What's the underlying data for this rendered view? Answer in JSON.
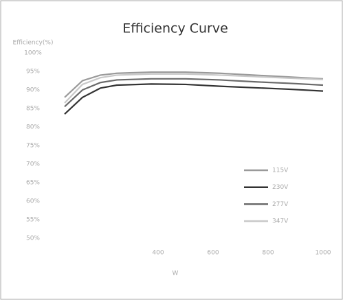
{
  "chart_data": {
    "type": "line",
    "title": "Efficiency Curve",
    "ylabel": "Efficiency(%)",
    "xlabel": "W",
    "x": [
      60,
      125,
      190,
      250,
      375,
      500,
      625,
      750,
      875,
      1000
    ],
    "xlim": [
      0,
      1050
    ],
    "xticks": [
      400,
      600,
      800,
      1000
    ],
    "ylim": [
      48,
      100
    ],
    "yticks": [
      {
        "value": 100,
        "label": "100%"
      },
      {
        "value": 95,
        "label": "95%"
      },
      {
        "value": 90,
        "label": "90%"
      },
      {
        "value": 85,
        "label": "85%"
      },
      {
        "value": 80,
        "label": "80%"
      },
      {
        "value": 75,
        "label": "75%"
      },
      {
        "value": 70,
        "label": "70%"
      },
      {
        "value": 65,
        "label": "65%"
      },
      {
        "value": 60,
        "label": "60%"
      },
      {
        "value": 55,
        "label": "55%"
      },
      {
        "value": 50,
        "label": "50%"
      }
    ],
    "grid": false,
    "legend": "lower right",
    "series": [
      {
        "name": "115V",
        "color": "#9a9a9a",
        "values": [
          88,
          92.5,
          94,
          94.5,
          94.8,
          94.8,
          94.5,
          94,
          93.5,
          93
        ]
      },
      {
        "name": "230V",
        "color": "#333333",
        "values": [
          83.5,
          88,
          90.5,
          91.3,
          91.6,
          91.5,
          91,
          90.6,
          90.2,
          89.7
        ]
      },
      {
        "name": "277V",
        "color": "#6a6a6a",
        "values": [
          85.5,
          90,
          92,
          92.7,
          93,
          93,
          92.7,
          92.2,
          91.8,
          91.3
        ]
      },
      {
        "name": "347V",
        "color": "#c8c8c8",
        "values": [
          86.5,
          91.5,
          93.3,
          94,
          94.3,
          94.3,
          94,
          93.6,
          93.2,
          92.8
        ]
      }
    ]
  }
}
